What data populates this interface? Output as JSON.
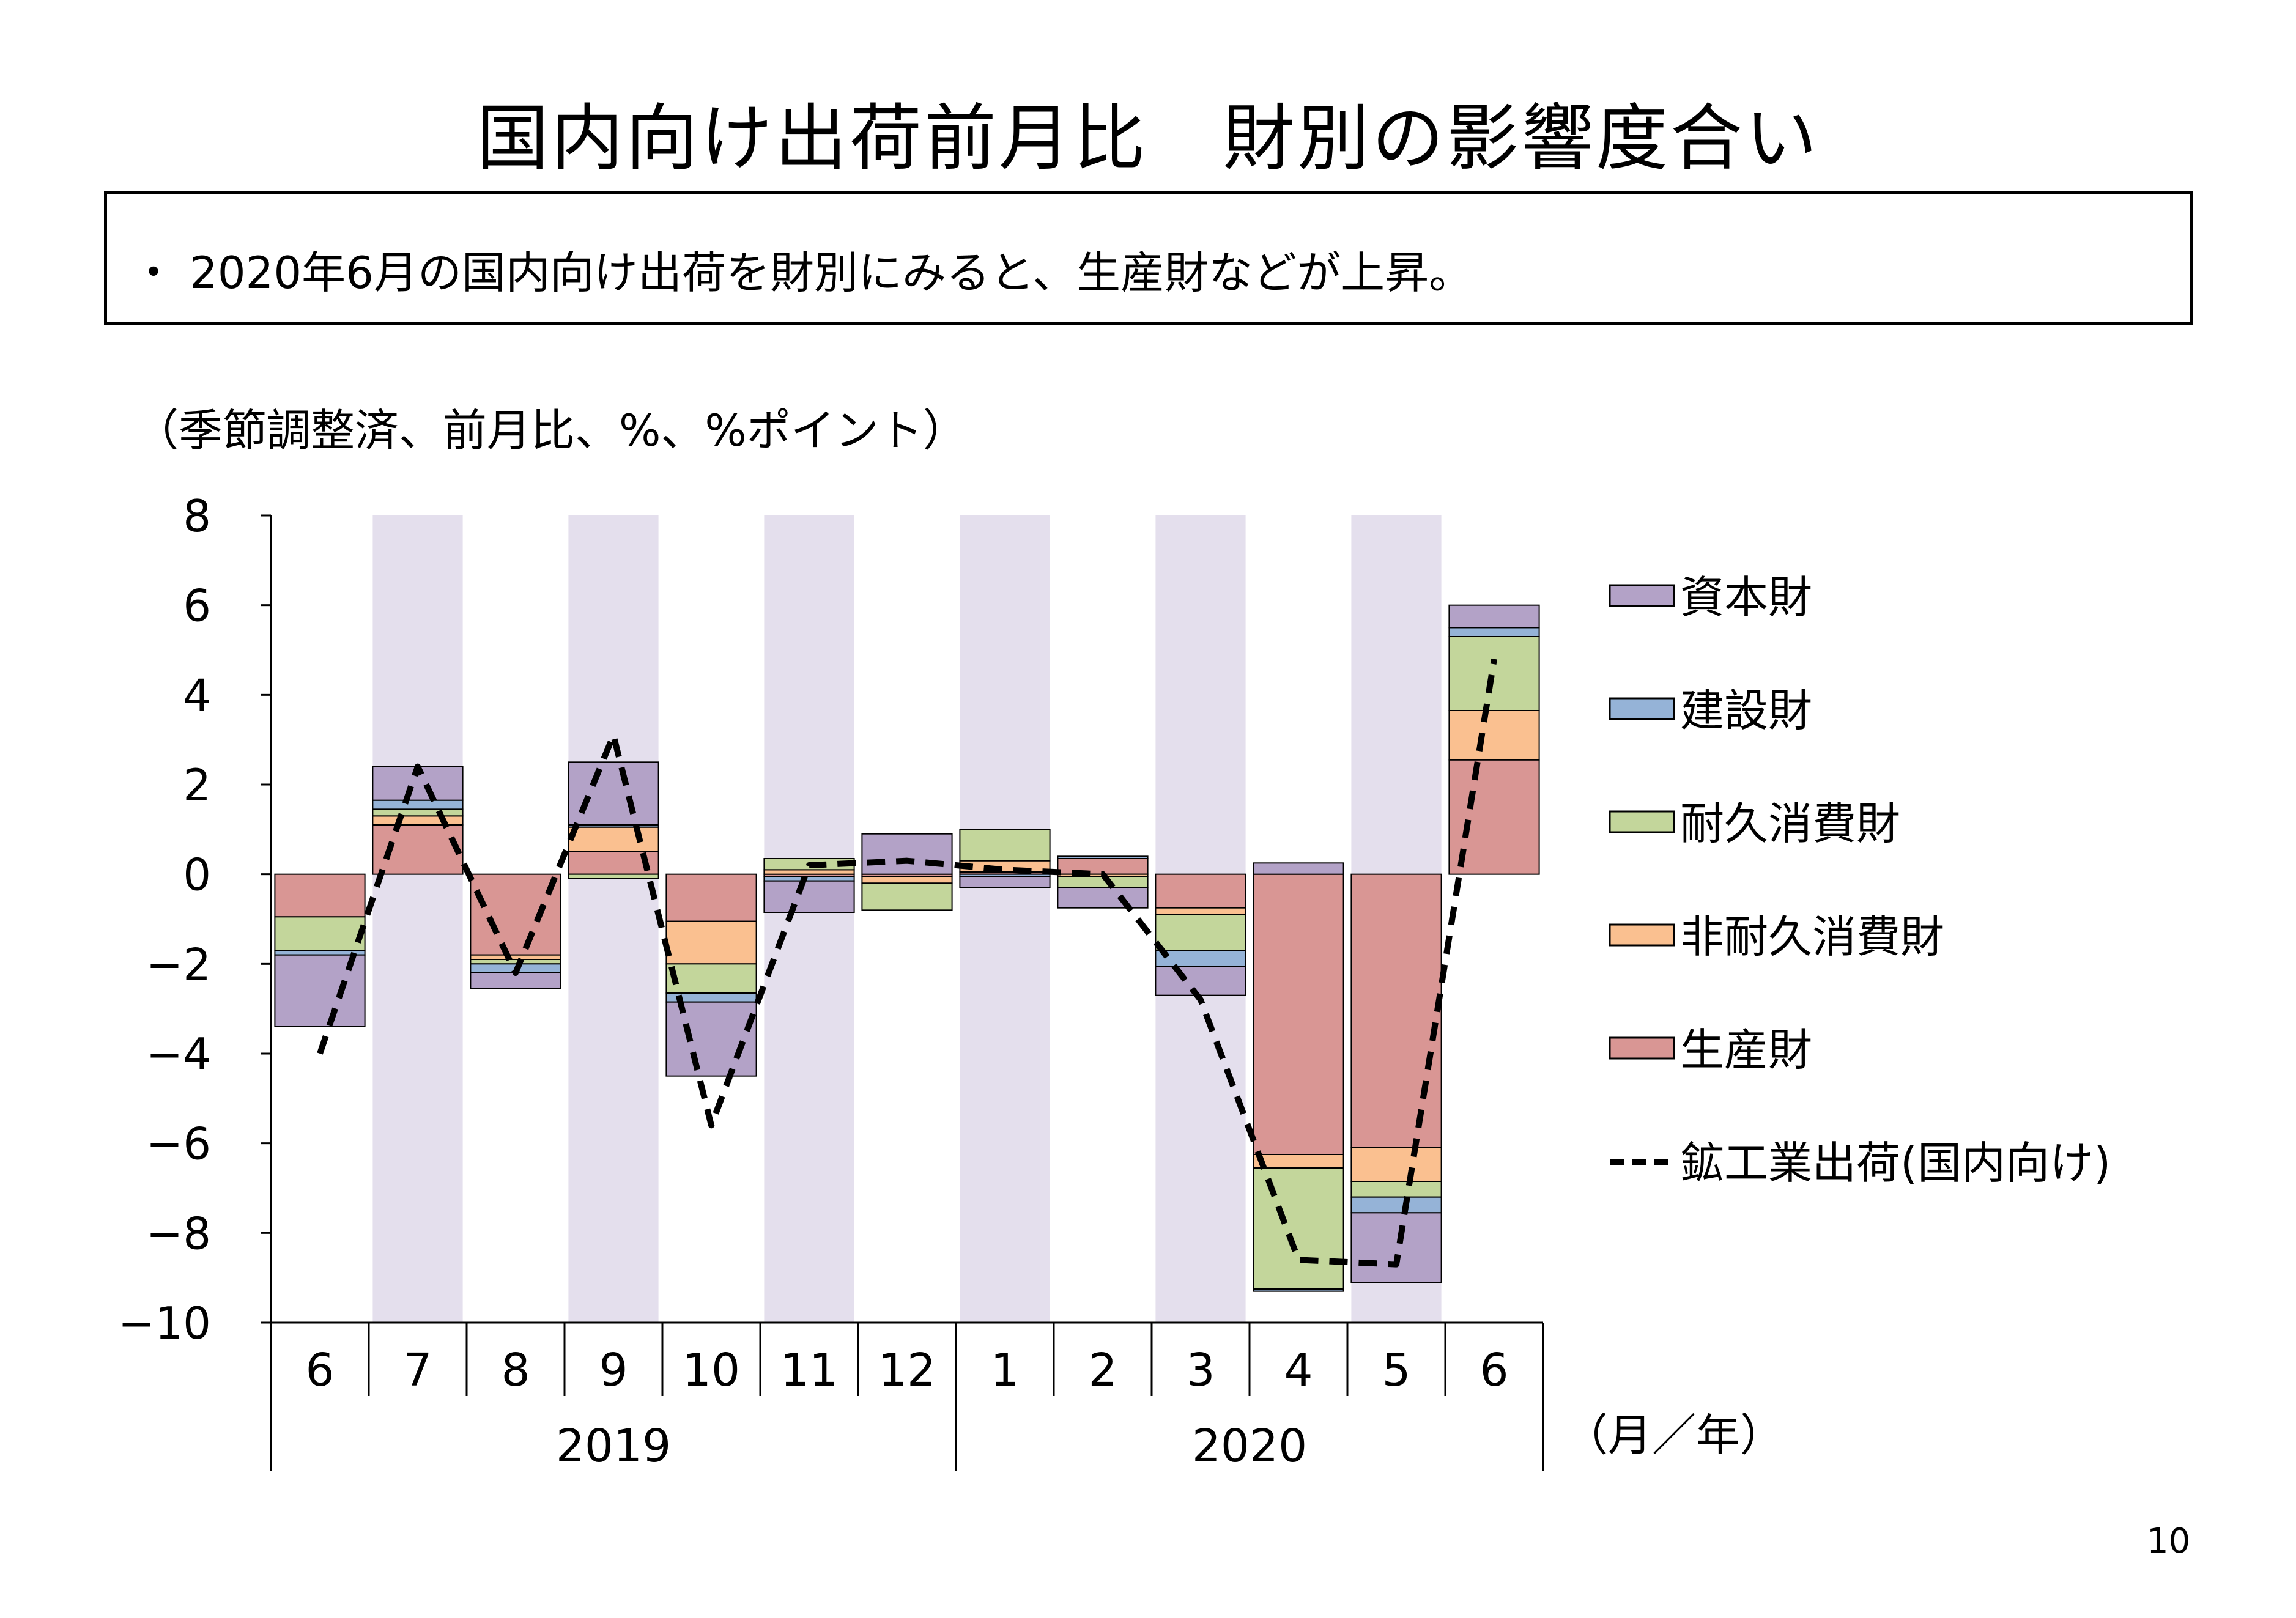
{
  "title": "国内向け出荷前月比　財別の影響度合い",
  "summary": {
    "bullet": "・",
    "text": "2020年6月の国内向け出荷を財別にみると、生産財などが上昇。"
  },
  "unit_note": "（季節調整済、前月比、%、%ポイント）",
  "x_unit_label": "（月／年）",
  "page_number": "10",
  "chart_data": {
    "type": "bar",
    "stacked": true,
    "months": [
      "6",
      "7",
      "8",
      "9",
      "10",
      "11",
      "12",
      "1",
      "2",
      "3",
      "4",
      "5",
      "6"
    ],
    "years": [
      {
        "label": "2019",
        "from_index": 0,
        "to_index": 6
      },
      {
        "label": "2020",
        "from_index": 7,
        "to_index": 12
      }
    ],
    "ylim": [
      -10,
      8
    ],
    "yticks": [
      8,
      6,
      4,
      2,
      0,
      -2,
      -4,
      -6,
      -8,
      -10
    ],
    "ytick_labels": [
      "8",
      "6",
      "4",
      "2",
      "0",
      "−2",
      "−4",
      "−6",
      "−8",
      "−10"
    ],
    "shaded_month_indices": [
      1,
      3,
      5,
      7,
      9,
      11
    ],
    "shade_color": "#e4dfed",
    "series": [
      {
        "name": "生産財",
        "color": "#d99694",
        "values": [
          -0.95,
          1.1,
          -1.8,
          0.5,
          -1.05,
          -0.05,
          -0.05,
          0.05,
          0.35,
          -0.75,
          -6.25,
          -6.1,
          2.55
        ]
      },
      {
        "name": "非耐久消費財",
        "color": "#fac090",
        "values": [
          0.0,
          0.2,
          -0.1,
          0.55,
          -0.95,
          0.1,
          -0.15,
          0.25,
          -0.05,
          -0.15,
          -0.3,
          -0.75,
          1.1
        ]
      },
      {
        "name": "耐久消費財",
        "color": "#c3d69b",
        "values": [
          -0.75,
          0.15,
          -0.1,
          -0.1,
          -0.65,
          0.25,
          -0.6,
          0.7,
          -0.25,
          -0.8,
          -2.7,
          -0.35,
          1.65
        ]
      },
      {
        "name": "建設財",
        "color": "#95b3d7",
        "values": [
          -0.1,
          0.2,
          -0.2,
          0.05,
          -0.2,
          -0.1,
          0.0,
          -0.05,
          0.05,
          -0.35,
          -0.05,
          -0.35,
          0.2
        ]
      },
      {
        "name": "資本財",
        "color": "#b3a2c7",
        "values": [
          -1.6,
          0.75,
          -0.35,
          1.4,
          -1.65,
          -0.7,
          0.9,
          -0.25,
          -0.45,
          -0.65,
          0.25,
          -1.55,
          0.5
        ]
      }
    ],
    "legend_order": [
      "資本財",
      "建設財",
      "耐久消費財",
      "非耐久消費財",
      "生産財"
    ],
    "line": {
      "name": "鉱工業出荷(国内向け)",
      "color": "#000000",
      "values": [
        -4.0,
        2.4,
        -2.2,
        3.1,
        -5.6,
        0.2,
        0.3,
        0.1,
        0.0,
        -2.8,
        -8.6,
        -8.7,
        4.8
      ]
    }
  }
}
